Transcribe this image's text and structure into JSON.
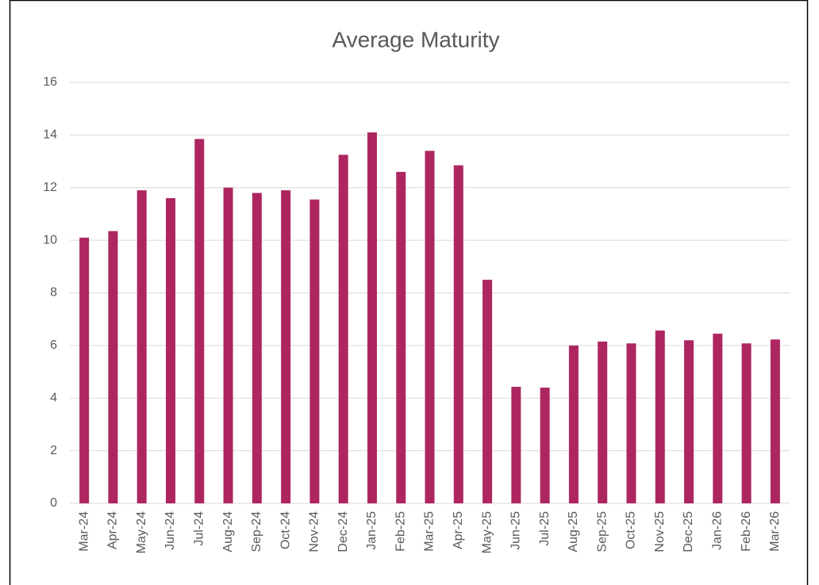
{
  "chart_data": {
    "type": "bar",
    "title": "Average Maturity",
    "categories": [
      "Mar-24",
      "Apr-24",
      "May-24",
      "Jun-24",
      "Jul-24",
      "Aug-24",
      "Sep-24",
      "Oct-24",
      "Nov-24",
      "Dec-24",
      "Jan-25",
      "Feb-25",
      "Mar-25",
      "Apr-25",
      "May-25",
      "Jun-25",
      "Jul-25",
      "Aug-25",
      "Sep-25",
      "Oct-25",
      "Nov-25",
      "Dec-25",
      "Jan-26",
      "Feb-26",
      "Mar-26"
    ],
    "values": [
      10.1,
      10.35,
      11.9,
      11.6,
      13.85,
      12.0,
      11.8,
      11.9,
      11.55,
      13.25,
      14.1,
      12.6,
      13.4,
      12.85,
      8.5,
      4.43,
      4.4,
      6.0,
      6.15,
      6.08,
      6.57,
      6.2,
      6.45,
      6.08,
      6.23
    ],
    "color": "#ae2660",
    "ylim": [
      0,
      16
    ],
    "yticks": [
      0,
      2,
      4,
      6,
      8,
      10,
      12,
      14,
      16
    ],
    "grid": true
  }
}
